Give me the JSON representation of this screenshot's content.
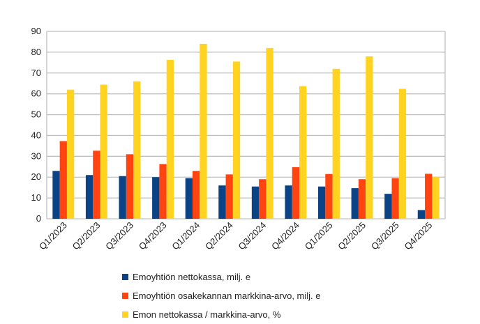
{
  "chart_data": {
    "type": "bar",
    "categories": [
      "Q1/2023",
      "Q2/2023",
      "Q3/2023",
      "Q4/2023",
      "Q1/2024",
      "Q2/2024",
      "Q3/2024",
      "Q4/2024",
      "Q1/2025",
      "Q2/2025",
      "Q3/2025",
      "Q4/2025"
    ],
    "series": [
      {
        "name": "Emoyhtiön nettokassa, milj. e",
        "color": "#0a4486",
        "values": [
          23,
          21,
          20.5,
          20,
          19.5,
          16,
          15.5,
          16,
          15.5,
          14.7,
          12,
          4.2
        ]
      },
      {
        "name": "Emoyhtiön osakekannan markkina-arvo, milj. e",
        "color": "#ff4412",
        "values": [
          37.3,
          32.7,
          31,
          26.3,
          23,
          21.3,
          19,
          24.8,
          21.5,
          19,
          19.5,
          21.6
        ]
      },
      {
        "name": "Emon nettokassa / markkina-arvo, %",
        "color": "#ffd320",
        "values": [
          62,
          64.4,
          66,
          76.3,
          84,
          75.5,
          82,
          63.7,
          72,
          78,
          62.4,
          20
        ]
      }
    ],
    "yticks": [
      0,
      10,
      20,
      30,
      40,
      50,
      60,
      70,
      80,
      90
    ],
    "ylim": [
      0,
      90
    ],
    "grid": true,
    "legend": "bottom",
    "title": "",
    "xlabel": "",
    "ylabel": ""
  }
}
